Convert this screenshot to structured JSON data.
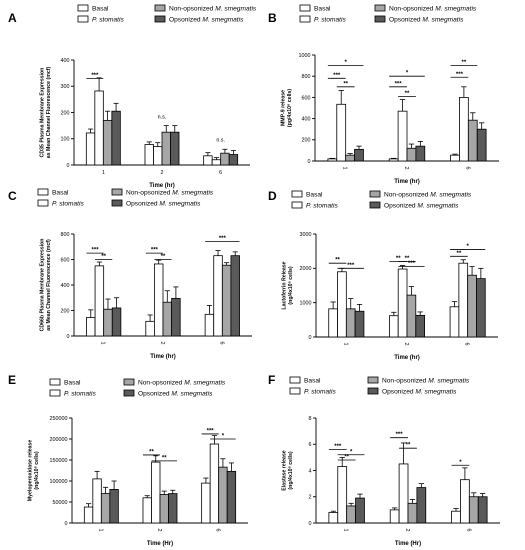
{
  "figure": {
    "series_styles": [
      {
        "fill": "#ffffff"
      },
      {
        "fill": "#ffffff"
      },
      {
        "fill": "#a6a6a6"
      },
      {
        "fill": "#5a5a5a"
      }
    ]
  },
  "chart_data": [
    {
      "panel": "A",
      "type": "bar",
      "ylabel": "CD35 Plasma Membrane Expression as Mean Channel Fluorescence (mcf)",
      "xlabel": "Time (hr)",
      "ylim": [
        0,
        400
      ],
      "yticks": [
        "0",
        "100",
        "200",
        "300",
        "400"
      ],
      "categories": [
        "1",
        "2",
        "6"
      ],
      "category_label_rotated": false,
      "legend": [
        "Basal",
        "P. stomatis",
        "Non-opsonized M. smegmatis",
        "Opsonized M. smegmatis"
      ],
      "series": [
        {
          "name": "Basal",
          "values": [
            122,
            78,
            35
          ],
          "errors": [
            15,
            10,
            12
          ]
        },
        {
          "name": "P. stomatis",
          "values": [
            282,
            70,
            20
          ],
          "errors": [
            50,
            15,
            8
          ]
        },
        {
          "name": "Non-opsonized M. smegmatis",
          "values": [
            170,
            125,
            45
          ],
          "errors": [
            35,
            25,
            15
          ]
        },
        {
          "name": "Opsonized M. smegmatis",
          "values": [
            205,
            125,
            40
          ],
          "errors": [
            30,
            25,
            15
          ]
        }
      ],
      "annotations": [
        {
          "text": "***",
          "category": 0,
          "from": 0,
          "to": 1,
          "level": 330
        },
        {
          "text": "n.s.",
          "category": 1,
          "level": 178
        },
        {
          "text": "n.s.",
          "category": 2,
          "level": 90
        }
      ]
    },
    {
      "panel": "B",
      "type": "bar",
      "ylabel": "MMP-9 release (pg/4x10⁶ cells)",
      "xlabel": "Time (hr)",
      "ylim": [
        0,
        1000
      ],
      "yticks": [
        "0",
        "200",
        "400",
        "600",
        "800",
        "1000"
      ],
      "categories": [
        "1",
        "2",
        "6"
      ],
      "category_label_rotated": true,
      "legend": [
        "Basal",
        "P. stomatis",
        "Non-opsonized M. smegmatis",
        "Opsonized M. smegmatis"
      ],
      "series": [
        {
          "name": "Basal",
          "values": [
            20,
            20,
            55
          ],
          "errors": [
            5,
            5,
            10
          ]
        },
        {
          "name": "P. stomatis",
          "values": [
            535,
            470,
            600
          ],
          "errors": [
            130,
            110,
            100
          ]
        },
        {
          "name": "Non-opsonized M. smegmatis",
          "values": [
            55,
            120,
            385
          ],
          "errors": [
            15,
            40,
            70
          ]
        },
        {
          "name": "Opsonized M. smegmatis",
          "values": [
            110,
            140,
            300
          ],
          "errors": [
            30,
            45,
            60
          ]
        }
      ],
      "annotations": [
        {
          "text": "*",
          "category": 0,
          "from": 0,
          "to": 3,
          "level": 900
        },
        {
          "text": "***",
          "category": 0,
          "from": 0,
          "to": 1,
          "level": 780
        },
        {
          "text": "**",
          "category": 0,
          "from": 1,
          "to": 2,
          "level": 700
        },
        {
          "text": "*",
          "category": 1,
          "from": 0,
          "to": 3,
          "level": 800
        },
        {
          "text": "***",
          "category": 1,
          "from": 0,
          "to": 1,
          "level": 700
        },
        {
          "text": "**",
          "category": 1,
          "from": 1,
          "to": 2,
          "level": 610
        },
        {
          "text": "**",
          "category": 2,
          "from": 0,
          "to": 2,
          "level": 900
        },
        {
          "text": "***",
          "category": 2,
          "from": 0,
          "to": 1,
          "level": 790
        }
      ]
    },
    {
      "panel": "C",
      "type": "bar",
      "ylabel": "CD66b Plasma Membrane Expression as Mean Channel Fluorescence (mcf)",
      "xlabel": "Time (hr)",
      "ylim": [
        0,
        800
      ],
      "yticks": [
        "0",
        "200",
        "400",
        "600",
        "800"
      ],
      "categories": [
        "1",
        "2",
        "6"
      ],
      "category_label_rotated": true,
      "legend": [
        "Basal",
        "P. stomatis",
        "Non-opsonized M. smegmatis",
        "Opsonized M. smegmatis"
      ],
      "series": [
        {
          "name": "Basal",
          "values": [
            145,
            115,
            170
          ],
          "errors": [
            60,
            50,
            70
          ]
        },
        {
          "name": "P. stomatis",
          "values": [
            550,
            565,
            630
          ],
          "errors": [
            30,
            30,
            40
          ]
        },
        {
          "name": "Non-opsonized M. smegmatis",
          "values": [
            210,
            265,
            555
          ],
          "errors": [
            80,
            90,
            20
          ]
        },
        {
          "name": "Opsonized M. smegmatis",
          "values": [
            220,
            295,
            630
          ],
          "errors": [
            80,
            90,
            30
          ]
        }
      ],
      "annotations": [
        {
          "text": "***",
          "category": 0,
          "from": 0,
          "to": 1,
          "level": 650
        },
        {
          "text": "**",
          "category": 0,
          "from": 1,
          "to": 2,
          "level": 600
        },
        {
          "text": "***",
          "category": 1,
          "from": 0,
          "to": 1,
          "level": 650
        },
        {
          "text": "**",
          "category": 1,
          "from": 1,
          "to": 2,
          "level": 600
        },
        {
          "text": "***",
          "category": 2,
          "from": 0,
          "to": 3,
          "level": 740
        }
      ]
    },
    {
      "panel": "D",
      "type": "bar",
      "ylabel": "Lactoferrin Release (ng/4x10⁶ cells)",
      "xlabel": "Time (hr)",
      "ylim": [
        0,
        3000
      ],
      "yticks": [
        "0",
        "1000",
        "2000",
        "3000"
      ],
      "categories": [
        "1",
        "2",
        "6"
      ],
      "category_label_rotated": true,
      "legend": [
        "Basal",
        "P. stomatis",
        "Non-opsonized M. smegmatis",
        "Opsonized M. smegmatis"
      ],
      "series": [
        {
          "name": "Basal",
          "values": [
            820,
            620,
            880
          ],
          "errors": [
            200,
            100,
            150
          ]
        },
        {
          "name": "P. stomatis",
          "values": [
            1900,
            1980,
            2150
          ],
          "errors": [
            100,
            100,
            100
          ]
        },
        {
          "name": "Non-opsonized M. smegmatis",
          "values": [
            820,
            1220,
            1800
          ],
          "errors": [
            300,
            250,
            250
          ]
        },
        {
          "name": "Opsonized M. smegmatis",
          "values": [
            750,
            630,
            1700
          ],
          "errors": [
            200,
            100,
            300
          ]
        }
      ],
      "annotations": [
        {
          "text": "**",
          "category": 0,
          "from": 0,
          "to": 1,
          "level": 2150
        },
        {
          "text": "***",
          "category": 0,
          "from": 1,
          "to": 3,
          "level": 2000
        },
        {
          "text": "**",
          "category": 1,
          "from": 0,
          "to": 1,
          "level": 2200
        },
        {
          "text": "**",
          "category": 1,
          "from": 1,
          "to": 2,
          "level": 2200
        },
        {
          "text": "***",
          "category": 1,
          "from": 1,
          "to": 3,
          "level": 2050
        },
        {
          "text": "*",
          "category": 2,
          "from": 0,
          "to": 3,
          "level": 2550
        },
        {
          "text": "**",
          "category": 2,
          "from": 0,
          "to": 1,
          "level": 2350
        }
      ]
    },
    {
      "panel": "E",
      "type": "bar",
      "ylabel": "Myeloperoxidase release (ng/4x10⁶ cells)",
      "xlabel": "Time (Hr)",
      "ylim": [
        0,
        250000
      ],
      "yticks": [
        "0",
        "50000",
        "100000",
        "150000",
        "200000",
        "250000"
      ],
      "categories": [
        "1",
        "2",
        "6"
      ],
      "category_label_rotated": true,
      "legend": [
        "Basal",
        "P. stomatis",
        "Non-opsonized M. smegmatis",
        "Opsonized M. smegmatis"
      ],
      "series": [
        {
          "name": "Basal",
          "values": [
            38000,
            60000,
            95000
          ],
          "errors": [
            8000,
            5000,
            12000
          ]
        },
        {
          "name": "P. stomatis",
          "values": [
            105000,
            145000,
            188000
          ],
          "errors": [
            18000,
            15000,
            20000
          ]
        },
        {
          "name": "Non-opsonized M. smegmatis",
          "values": [
            70000,
            68000,
            133000
          ],
          "errors": [
            15000,
            8000,
            20000
          ]
        },
        {
          "name": "Opsonized M. smegmatis",
          "values": [
            80000,
            70000,
            123000
          ],
          "errors": [
            20000,
            8000,
            20000
          ]
        }
      ],
      "annotations": [
        {
          "text": "**",
          "category": 1,
          "from": 0,
          "to": 1,
          "level": 162000
        },
        {
          "text": "**",
          "category": 1,
          "from": 1,
          "to": 3,
          "level": 148000
        },
        {
          "text": "***",
          "category": 2,
          "from": 0,
          "to": 1,
          "level": 212000
        },
        {
          "text": "*",
          "category": 2,
          "from": 1,
          "to": 3,
          "level": 200000
        }
      ]
    },
    {
      "panel": "F",
      "type": "bar",
      "ylabel": "Elastase release (ng/4x10⁶ cells)",
      "xlabel": "Time (Hr)",
      "ylim": [
        0,
        8
      ],
      "yticks": [
        "0",
        "2",
        "4",
        "6",
        "8"
      ],
      "categories": [
        "1",
        "2",
        "6"
      ],
      "category_label_rotated": true,
      "legend": [
        "Basal",
        "P. stomatis",
        "Non-opsonized M. smegmatis",
        "Opsonized M. smegmatis"
      ],
      "series": [
        {
          "name": "Basal",
          "values": [
            0.8,
            1.0,
            0.9
          ],
          "errors": [
            0.1,
            0.15,
            0.2
          ]
        },
        {
          "name": "P. stomatis",
          "values": [
            4.3,
            4.5,
            3.3
          ],
          "errors": [
            0.7,
            1.6,
            0.9
          ]
        },
        {
          "name": "Non-opsonized M. smegmatis",
          "values": [
            1.3,
            1.5,
            2.0
          ],
          "errors": [
            0.2,
            0.3,
            0.3
          ]
        },
        {
          "name": "Opsonized M. smegmatis",
          "values": [
            1.9,
            2.7,
            2.0
          ],
          "errors": [
            0.3,
            0.3,
            0.25
          ]
        }
      ],
      "annotations": [
        {
          "text": "***",
          "category": 0,
          "from": 0,
          "to": 1,
          "level": 5.6
        },
        {
          "text": "*",
          "category": 0,
          "from": 1,
          "to": 3,
          "level": 5.2
        },
        {
          "text": "**",
          "category": 0,
          "from": 1,
          "to": 2,
          "level": 4.8
        },
        {
          "text": "***",
          "category": 1,
          "from": 0,
          "to": 1,
          "level": 6.5
        },
        {
          "text": "**",
          "category": 1,
          "from": 1,
          "to": 2,
          "level": 5.7
        },
        {
          "text": "*",
          "category": 2,
          "from": 0,
          "to": 1,
          "level": 4.4
        }
      ]
    }
  ]
}
